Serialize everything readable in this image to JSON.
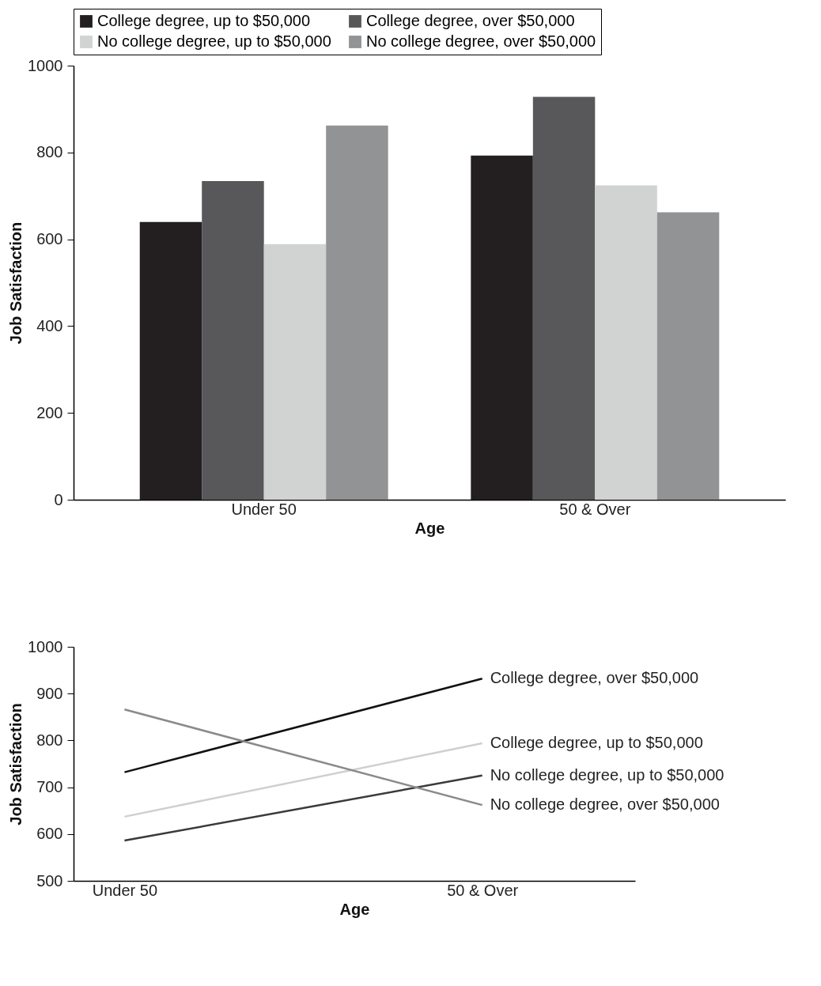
{
  "chart_data": [
    {
      "type": "bar",
      "categories": [
        "Under 50",
        "50 & Over"
      ],
      "series": [
        {
          "name": "College degree, up to $50,000",
          "color": "#231f20",
          "values": [
            640,
            793
          ]
        },
        {
          "name": "College degree, over $50,000",
          "color": "#58585a",
          "values": [
            734,
            928
          ]
        },
        {
          "name": "No college degree, up to $50,000",
          "color": "#d1d2d2",
          "values": [
            589,
            724
          ]
        },
        {
          "name": "No college degree, over $50,000",
          "color": "#929395",
          "values": [
            862,
            662
          ]
        }
      ],
      "ylim": [
        0,
        1000
      ],
      "yticks": [
        0,
        200,
        400,
        600,
        800,
        1000
      ],
      "xlabel": "Age",
      "ylabel": "Job Satisfaction",
      "legend": "top",
      "grid": false
    },
    {
      "type": "line",
      "categories": [
        "Under 50",
        "50 & Over"
      ],
      "series": [
        {
          "name": "College degree, over $50,000",
          "color": "#111111",
          "values": [
            732,
            932
          ]
        },
        {
          "name": "College degree, up to $50,000",
          "color": "#cfcfcf",
          "values": [
            637,
            794
          ]
        },
        {
          "name": "No college degree, up to $50,000",
          "color": "#3a3a3a",
          "values": [
            586,
            725
          ]
        },
        {
          "name": "No college degree, over $50,000",
          "color": "#8a8a8a",
          "values": [
            866,
            662
          ]
        }
      ],
      "ylim": [
        500,
        1000
      ],
      "yticks": [
        500,
        600,
        700,
        800,
        900,
        1000
      ],
      "xlabel": "Age",
      "ylabel": "Job Satisfaction",
      "legend": false,
      "grid": false
    }
  ]
}
